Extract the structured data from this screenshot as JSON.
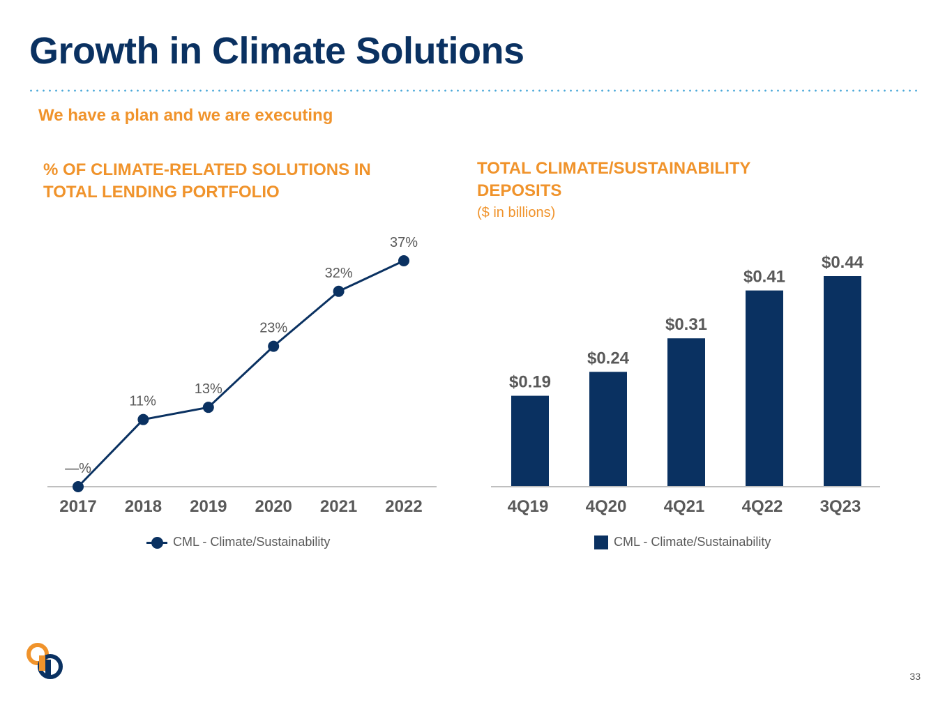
{
  "slide": {
    "title": "Growth in Climate Solutions",
    "subtitle": "We have a plan and we are executing",
    "page_number": "33"
  },
  "chart_data": [
    {
      "type": "line",
      "title_lines": [
        "% OF CLIMATE-RELATED SOLUTIONS IN",
        "TOTAL LENDING PORTFOLIO"
      ],
      "categories": [
        "2017",
        "2018",
        "2019",
        "2020",
        "2021",
        "2022"
      ],
      "series": [
        {
          "name": "CML - Climate/Sustainability",
          "values": [
            0,
            11,
            13,
            23,
            32,
            37
          ],
          "labels": [
            "—%",
            "11%",
            "13%",
            "23%",
            "32%",
            "37%"
          ],
          "color": "#0a3161"
        }
      ],
      "ylim": [
        0,
        37
      ],
      "grid": false,
      "legend": "bottom-center"
    },
    {
      "type": "bar",
      "title_lines": [
        "TOTAL CLIMATE/SUSTAINABILITY",
        "DEPOSITS"
      ],
      "unit": "($ in billions)",
      "categories": [
        "4Q19",
        "4Q20",
        "4Q21",
        "4Q22",
        "3Q23"
      ],
      "series": [
        {
          "name": "CML - Climate/Sustainability",
          "values": [
            0.19,
            0.24,
            0.31,
            0.41,
            0.44
          ],
          "labels": [
            "$0.19",
            "$0.24",
            "$0.31",
            "$0.41",
            "$0.44"
          ],
          "color": "#0a3161"
        }
      ],
      "ylim": [
        0,
        0.44
      ],
      "grid": false,
      "legend": "bottom-center"
    }
  ],
  "colors": {
    "navy": "#0a3161",
    "orange": "#f0932b",
    "axis": "#bfbfbf",
    "label_gray": "#595959",
    "dots": "#4aa8d8"
  }
}
